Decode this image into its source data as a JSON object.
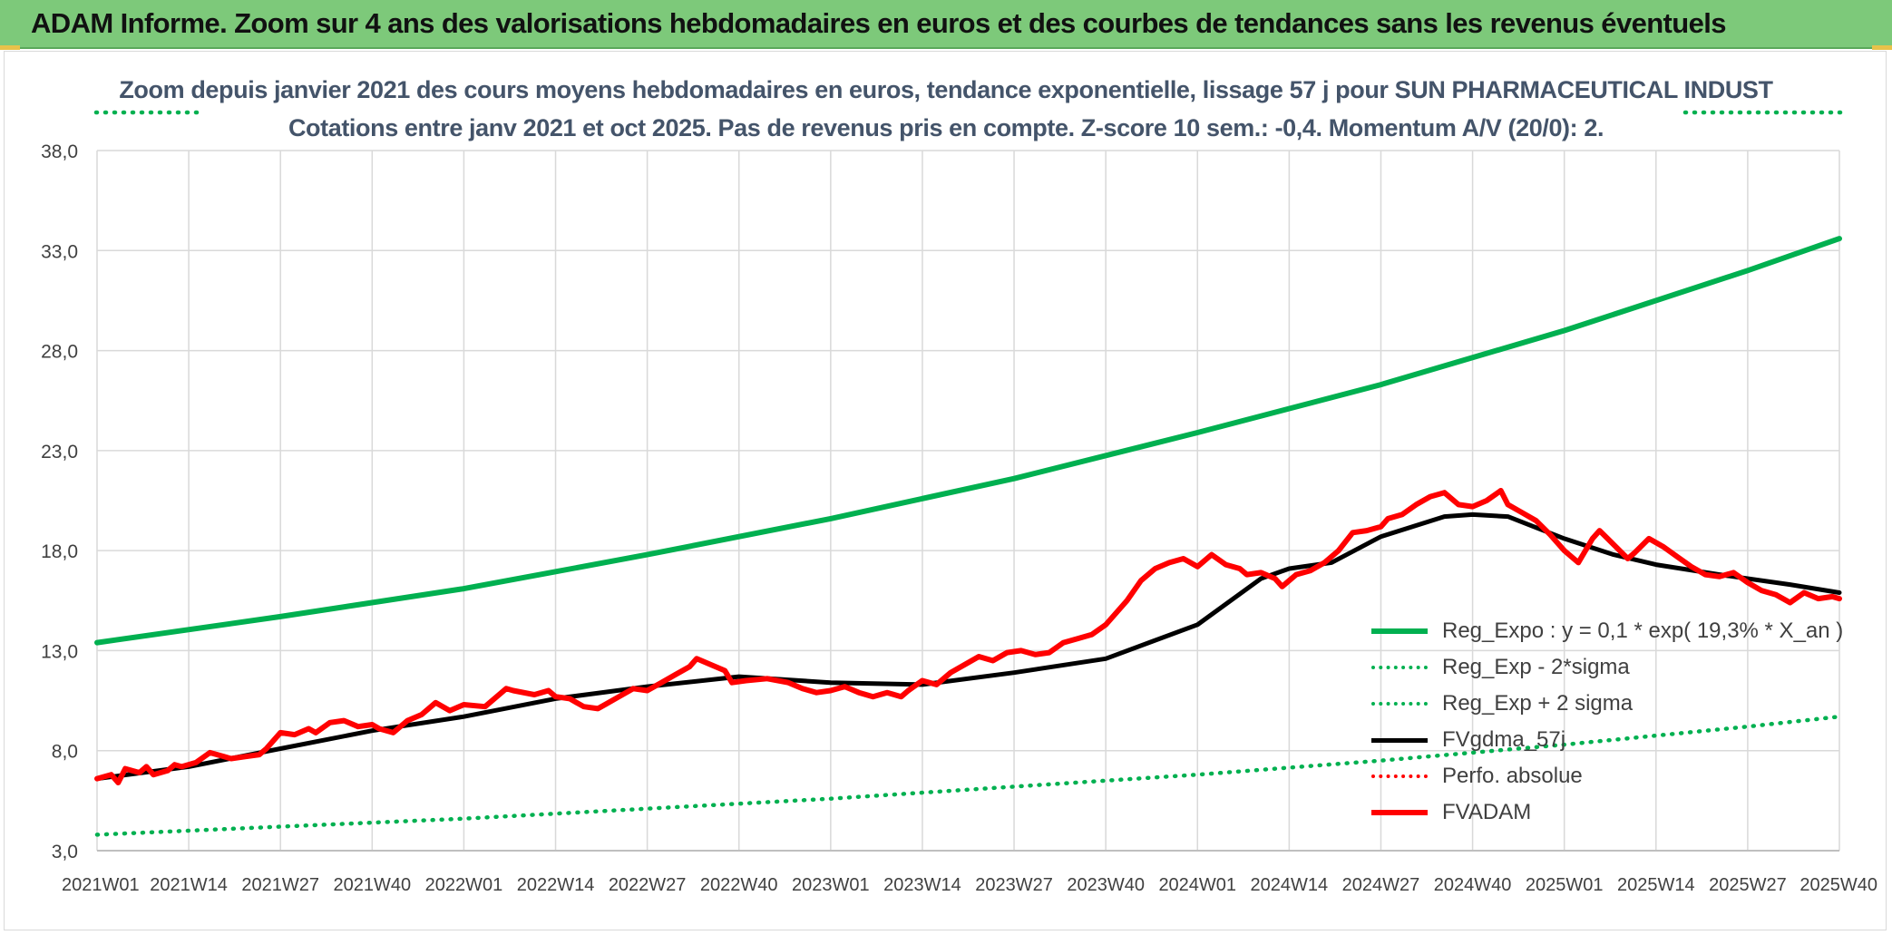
{
  "banner": {
    "title": "ADAM Informe. Zoom sur 4 ans des valorisations hebdomadaires en euros et des courbes de tendances sans les revenus éventuels"
  },
  "colors": {
    "banner_bg": "#7dc97a",
    "trend": "#00b050",
    "smooth": "#000000",
    "fvadam": "#ff0000",
    "grid": "#d9d9d9",
    "subtitle": "#44546a"
  },
  "chart_data": {
    "type": "line",
    "title": "Zoom depuis janvier 2021 des cours moyens hebdomadaires en euros, tendance exponentielle, lissage 57 j pour SUN PHARMACEUTICAL INDUST",
    "subtitle": "Cotations entre janv 2021 et oct 2025. Pas de revenus pris en compte. Z-score 10 sem.: -0,4. Momentum A/V (20/0): 2.",
    "xlabel": "",
    "ylabel": "",
    "ylim": [
      3,
      38
    ],
    "ytick_values": [
      3,
      8,
      13,
      18,
      23,
      28,
      33,
      38
    ],
    "ytick_labels": [
      "3,0",
      "8,0",
      "13,0",
      "18,0",
      "23,0",
      "28,0",
      "33,0",
      "38,0"
    ],
    "categories": [
      "2021W01",
      "2021W14",
      "2021W27",
      "2021W40",
      "2022W01",
      "2022W14",
      "2022W27",
      "2022W40",
      "2023W01",
      "2023W14",
      "2023W27",
      "2023W40",
      "2024W01",
      "2024W14",
      "2024W27",
      "2024W40",
      "2025W01",
      "2025W14",
      "2025W27",
      "2025W40"
    ],
    "x_range": [
      0,
      247
    ],
    "grid": true,
    "legend_position": "bottom-right",
    "series": [
      {
        "name": "Reg_Expo : y = 0,1 * exp( 19,3% *  X_an )",
        "style": "solid-thick",
        "color": "#00b050",
        "x": [
          0,
          26,
          52,
          78,
          104,
          130,
          156,
          182,
          208,
          234,
          247
        ],
        "values": [
          13.4,
          14.7,
          16.1,
          17.8,
          19.6,
          21.6,
          23.9,
          26.3,
          29.0,
          32.0,
          33.6
        ]
      },
      {
        "name": "Reg_Exp - 2*sigma",
        "style": "dotted",
        "color": "#00b050",
        "x": [
          0,
          26,
          52,
          78,
          104,
          130,
          156,
          182,
          208,
          234,
          247
        ],
        "values": [
          3.8,
          4.2,
          4.6,
          5.1,
          5.6,
          6.2,
          6.8,
          7.5,
          8.3,
          9.2,
          9.7
        ]
      },
      {
        "name": "Reg_Exp + 2 sigma",
        "style": "dotted",
        "color": "#00b050",
        "visible_ranges": [
          [
            0,
            15
          ],
          [
            220,
            247
          ]
        ],
        "x": [
          0,
          15,
          220,
          247
        ],
        "values": [
          40.0,
          40.0,
          40.0,
          40.0
        ]
      },
      {
        "name": "FVgdma_57j",
        "style": "solid",
        "color": "#000000",
        "x": [
          0,
          13,
          26,
          39,
          52,
          65,
          78,
          91,
          104,
          117,
          130,
          143,
          156,
          165,
          169,
          175,
          182,
          191,
          195,
          200,
          208,
          215,
          221,
          230,
          240,
          247
        ],
        "values": [
          6.6,
          7.2,
          8.1,
          9.0,
          9.7,
          10.6,
          11.2,
          11.7,
          11.4,
          11.3,
          11.9,
          12.6,
          14.3,
          16.6,
          17.1,
          17.4,
          18.7,
          19.7,
          19.8,
          19.7,
          18.6,
          17.8,
          17.3,
          16.8,
          16.3,
          15.9
        ]
      },
      {
        "name": "Perfo. absolue",
        "style": "dotted",
        "color": "#ff0000",
        "x": [],
        "values": []
      },
      {
        "name": "FVADAM",
        "style": "solid-thick",
        "color": "#ff0000",
        "x": [
          0,
          2,
          3,
          4,
          6,
          7,
          8,
          10,
          11,
          12,
          14,
          16,
          18,
          19,
          21,
          23,
          24,
          26,
          28,
          30,
          31,
          33,
          35,
          37,
          39,
          40,
          42,
          44,
          46,
          48,
          50,
          52,
          55,
          58,
          59,
          62,
          64,
          65,
          67,
          69,
          71,
          72,
          74,
          76,
          78,
          80,
          82,
          84,
          85,
          87,
          89,
          90,
          92,
          95,
          98,
          100,
          102,
          104,
          106,
          108,
          110,
          112,
          114,
          115,
          117,
          119,
          121,
          123,
          125,
          127,
          129,
          131,
          133,
          135,
          137,
          139,
          141,
          143,
          146,
          148,
          150,
          152,
          154,
          156,
          158,
          160,
          162,
          163,
          165,
          167,
          168,
          170,
          172,
          174,
          176,
          178,
          180,
          182,
          183,
          185,
          187,
          189,
          191,
          193,
          195,
          197,
          199,
          200,
          202,
          204,
          206,
          208,
          210,
          212,
          213,
          215,
          217,
          218,
          220,
          222,
          224,
          226,
          228,
          230,
          232,
          234,
          236,
          238,
          240,
          242,
          244,
          246,
          247
        ],
        "values": [
          6.6,
          6.8,
          6.4,
          7.1,
          6.9,
          7.2,
          6.8,
          7.0,
          7.3,
          7.2,
          7.4,
          7.9,
          7.7,
          7.6,
          7.7,
          7.8,
          8.1,
          8.9,
          8.8,
          9.1,
          8.9,
          9.4,
          9.5,
          9.2,
          9.3,
          9.1,
          8.9,
          9.5,
          9.8,
          10.4,
          10.0,
          10.3,
          10.2,
          11.1,
          11.0,
          10.8,
          11.0,
          10.7,
          10.6,
          10.2,
          10.1,
          10.3,
          10.7,
          11.1,
          11.0,
          11.4,
          11.8,
          12.2,
          12.6,
          12.3,
          12.0,
          11.4,
          11.5,
          11.6,
          11.4,
          11.1,
          10.9,
          11.0,
          11.2,
          10.9,
          10.7,
          10.9,
          10.7,
          11.0,
          11.5,
          11.3,
          11.9,
          12.3,
          12.7,
          12.5,
          12.9,
          13.0,
          12.8,
          12.9,
          13.4,
          13.6,
          13.8,
          14.3,
          15.5,
          16.5,
          17.1,
          17.4,
          17.6,
          17.2,
          17.8,
          17.3,
          17.1,
          16.8,
          16.9,
          16.6,
          16.2,
          16.8,
          17.0,
          17.4,
          18.0,
          18.9,
          19.0,
          19.2,
          19.6,
          19.8,
          20.3,
          20.7,
          20.9,
          20.3,
          20.2,
          20.5,
          21.0,
          20.3,
          19.9,
          19.5,
          18.8,
          18.0,
          17.4,
          18.6,
          19.0,
          18.3,
          17.6,
          17.9,
          18.6,
          18.2,
          17.7,
          17.2,
          16.8,
          16.7,
          16.9,
          16.4,
          16.0,
          15.8,
          15.4,
          15.9,
          15.6,
          15.7,
          15.6
        ]
      }
    ]
  }
}
